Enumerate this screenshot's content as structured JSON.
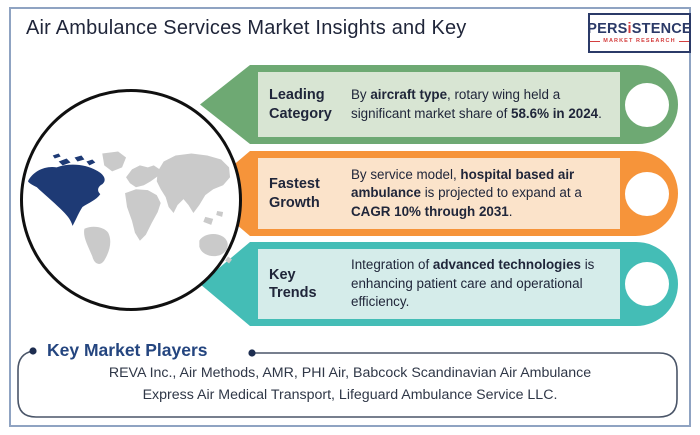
{
  "colors": {
    "frame-border": "#8fa3c2",
    "title-text": "#20263a",
    "logo-navy": "#2b3a68",
    "logo-red": "#d43f3f",
    "band-text": "#20263a",
    "map-land": "#cacaca",
    "map-highlight": "#1e3a75",
    "circle-border": "#101010",
    "players-border": "#4a5568",
    "players-title": "#24457f",
    "players-text": "#2f3747",
    "dot": "#1d2d50"
  },
  "header": {
    "title": "Air Ambulance Services Market Insights and Key"
  },
  "logo": {
    "part1": "PERS",
    "part2": "i",
    "part3": "STENCE",
    "tagline": "MARKET RESEARCH"
  },
  "map": {
    "highlighted_region": "North America"
  },
  "bands": [
    {
      "label": "Leading\nCategory",
      "color": "#6ea973",
      "light_color": "#d8e5d3",
      "desc": [
        {
          "t": "By ",
          "b": 0
        },
        {
          "t": "aircraft type",
          "b": 1
        },
        {
          "t": ", rotary wing held a significant market share of ",
          "b": 0
        },
        {
          "t": "58.6% in 2024",
          "b": 1
        },
        {
          "t": ".",
          "b": 0
        }
      ]
    },
    {
      "label": "Fastest\nGrowth",
      "color": "#f6943a",
      "light_color": "#fbe3ca",
      "desc": [
        {
          "t": "By service model, ",
          "b": 0
        },
        {
          "t": "hospital based air ambulance",
          "b": 1
        },
        {
          "t": " is projected to expand at a ",
          "b": 0
        },
        {
          "t": "CAGR 10% through 2031",
          "b": 1
        },
        {
          "t": ".",
          "b": 0
        }
      ]
    },
    {
      "label": "Key\nTrends",
      "color": "#44bdb6",
      "light_color": "#d5ecea",
      "desc": [
        {
          "t": "Integration of ",
          "b": 0
        },
        {
          "t": "advanced technologies",
          "b": 1
        },
        {
          "t": " is enhancing patient care and operational efficiency.",
          "b": 0
        }
      ]
    }
  ],
  "players": {
    "title": "Key Market Players",
    "lines": [
      "REVA Inc., Air Methods, AMR, PHI Air, Babcock Scandinavian Air Ambulance",
      "Express Air Medical Transport, Lifeguard Ambulance Service LLC."
    ]
  }
}
